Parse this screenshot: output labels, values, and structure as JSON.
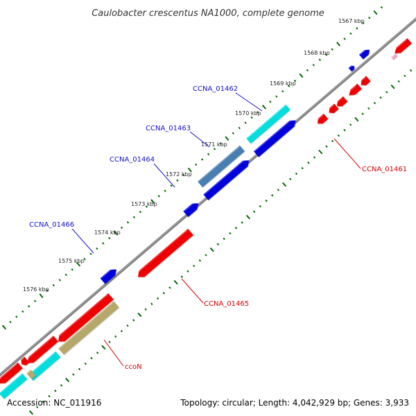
{
  "title": "Caulobacter crescentus NA1000, complete genome",
  "scale_labels": [
    "1567 kbp",
    "1568 kbp",
    "1569 kbp",
    "1570 kbp",
    "1571 kbp",
    "1572 kbp",
    "1573 kbp",
    "1574 kbp",
    "1575 kbp",
    "1576 kbp"
  ],
  "gene_labels": [
    {
      "text": "CCNA_01462",
      "strand": "forward"
    },
    {
      "text": "CCNA_01463",
      "strand": "forward"
    },
    {
      "text": "CCNA_01464",
      "strand": "forward"
    },
    {
      "text": "CCNA_01466",
      "strand": "forward"
    },
    {
      "text": "CCNA_01461",
      "strand": "reverse"
    },
    {
      "text": "CCNA_01465",
      "strand": "reverse"
    },
    {
      "text": "ccoN",
      "strand": "reverse"
    }
  ],
  "footer": {
    "accession": "Accession: NC_011916",
    "summary": "Topology: circular; Length: 4,042,929 bp; Genes: 3,933"
  },
  "colors": {
    "backbone": "#808080",
    "forward_gene": "#0000dd",
    "reverse_gene": "#ee0000",
    "rna_cyan": "#00dddd",
    "olive_feature": "#b5a86a",
    "steel_feature": "#4a7fb0",
    "pink_feature": "#f2a0c8",
    "tick_green": "#006600"
  }
}
